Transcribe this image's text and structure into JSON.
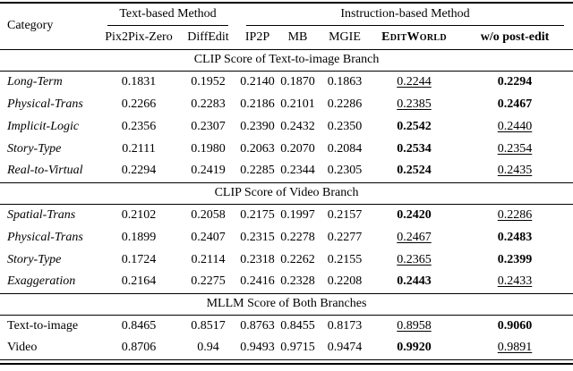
{
  "colors": {
    "text": "#000000",
    "background": "#ffffff",
    "rule": "#000000"
  },
  "table": {
    "category_header": "Category",
    "group_headers": [
      {
        "label": "Text-based Method",
        "span": 2
      },
      {
        "label": "Instruction-based Method",
        "span": 5
      }
    ],
    "method_headers": [
      {
        "id": "pix2pix-zero",
        "label": "Pix2Pix-Zero",
        "style": ""
      },
      {
        "id": "diffedit",
        "label": "DiffEdit",
        "style": ""
      },
      {
        "id": "ip2p",
        "label": "IP2P",
        "style": ""
      },
      {
        "id": "mb",
        "label": "MB",
        "style": ""
      },
      {
        "id": "mgie",
        "label": "MGIE",
        "style": ""
      },
      {
        "id": "editworld",
        "label": "EditWorld",
        "style": "sc-bold"
      },
      {
        "id": "wo-post-edit",
        "label": "w/o post-edit",
        "style": "bold"
      }
    ],
    "style_legend": {
      "b": "bold (best)",
      "u": "underline (second best)",
      "": "normal"
    },
    "sections": [
      {
        "title": "CLIP Score of Text-to-image Branch",
        "italic_categories": true,
        "rows": [
          {
            "category": "Long-Term",
            "values": [
              "0.1831",
              "0.1952",
              "0.2140",
              "0.1870",
              "0.1863",
              "0.2244",
              "0.2294"
            ],
            "styles": [
              "",
              "",
              "",
              "",
              "",
              "u",
              "b"
            ]
          },
          {
            "category": "Physical-Trans",
            "values": [
              "0.2266",
              "0.2283",
              "0.2186",
              "0.2101",
              "0.2286",
              "0.2385",
              "0.2467"
            ],
            "styles": [
              "",
              "",
              "",
              "",
              "",
              "u",
              "b"
            ]
          },
          {
            "category": "Implicit-Logic",
            "values": [
              "0.2356",
              "0.2307",
              "0.2390",
              "0.2432",
              "0.2350",
              "0.2542",
              "0.2440"
            ],
            "styles": [
              "",
              "",
              "",
              "",
              "",
              "b",
              "u"
            ]
          },
          {
            "category": "Story-Type",
            "values": [
              "0.2111",
              "0.1980",
              "0.2063",
              "0.2070",
              "0.2084",
              "0.2534",
              "0.2354"
            ],
            "styles": [
              "",
              "",
              "",
              "",
              "",
              "b",
              "u"
            ]
          },
          {
            "category": "Real-to-Virtual",
            "values": [
              "0.2294",
              "0.2419",
              "0.2285",
              "0.2344",
              "0.2305",
              "0.2524",
              "0.2435"
            ],
            "styles": [
              "",
              "",
              "",
              "",
              "",
              "b",
              "u"
            ]
          }
        ]
      },
      {
        "title": "CLIP Score of Video Branch",
        "italic_categories": true,
        "rows": [
          {
            "category": "Spatial-Trans",
            "values": [
              "0.2102",
              "0.2058",
              "0.2175",
              "0.1997",
              "0.2157",
              "0.2420",
              "0.2286"
            ],
            "styles": [
              "",
              "",
              "",
              "",
              "",
              "b",
              "u"
            ]
          },
          {
            "category": "Physical-Trans",
            "values": [
              "0.1899",
              "0.2407",
              "0.2315",
              "0.2278",
              "0.2277",
              "0.2467",
              "0.2483"
            ],
            "styles": [
              "",
              "",
              "",
              "",
              "",
              "u",
              "b"
            ]
          },
          {
            "category": "Story-Type",
            "values": [
              "0.1724",
              "0.2114",
              "0.2318",
              "0.2262",
              "0.2155",
              "0.2365",
              "0.2399"
            ],
            "styles": [
              "",
              "",
              "",
              "",
              "",
              "u",
              "b"
            ]
          },
          {
            "category": "Exaggeration",
            "values": [
              "0.2164",
              "0.2275",
              "0.2416",
              "0.2328",
              "0.2208",
              "0.2443",
              "0.2433"
            ],
            "styles": [
              "",
              "",
              "",
              "",
              "",
              "b",
              "u"
            ]
          }
        ]
      },
      {
        "title": "MLLM Score of Both Branches",
        "italic_categories": false,
        "rows": [
          {
            "category": "Text-to-image",
            "values": [
              "0.8465",
              "0.8517",
              "0.8763",
              "0.8455",
              "0.8173",
              "0.8958",
              "0.9060"
            ],
            "styles": [
              "",
              "",
              "",
              "",
              "",
              "u",
              "b"
            ]
          },
          {
            "category": "Video",
            "values": [
              "0.8706",
              "0.94",
              "0.9493",
              "0.9715",
              "0.9474",
              "0.9920",
              "0.9891"
            ],
            "styles": [
              "",
              "",
              "",
              "",
              "",
              "b",
              "u"
            ]
          }
        ]
      }
    ]
  }
}
